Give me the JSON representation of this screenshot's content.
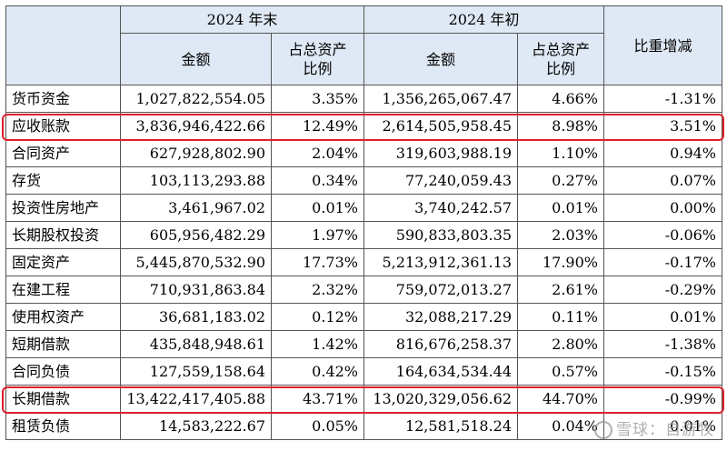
{
  "header": {
    "period_end": "2024 年末",
    "period_start": "2024 年初",
    "amount": "金额",
    "ratio": "占总资产\n比例",
    "change": "比重增减"
  },
  "rows": [
    {
      "item": "货币资金",
      "end_amount": "1,027,822,554.05",
      "end_ratio": "3.35%",
      "start_amount": "1,356,265,067.47",
      "start_ratio": "4.66%",
      "change": "-1.31%"
    },
    {
      "item": "应收账款",
      "end_amount": "3,836,946,422.66",
      "end_ratio": "12.49%",
      "start_amount": "2,614,505,958.45",
      "start_ratio": "8.98%",
      "change": "3.51%"
    },
    {
      "item": "合同资产",
      "end_amount": "627,928,802.90",
      "end_ratio": "2.04%",
      "start_amount": "319,603,988.19",
      "start_ratio": "1.10%",
      "change": "0.94%"
    },
    {
      "item": "存货",
      "end_amount": "103,113,293.88",
      "end_ratio": "0.34%",
      "start_amount": "77,240,059.43",
      "start_ratio": "0.27%",
      "change": "0.07%"
    },
    {
      "item": "投资性房地产",
      "end_amount": "3,461,967.02",
      "end_ratio": "0.01%",
      "start_amount": "3,740,242.57",
      "start_ratio": "0.01%",
      "change": "0.00%"
    },
    {
      "item": "长期股权投资",
      "end_amount": "605,956,482.29",
      "end_ratio": "1.97%",
      "start_amount": "590,833,803.35",
      "start_ratio": "2.03%",
      "change": "-0.06%"
    },
    {
      "item": "固定资产",
      "end_amount": "5,445,870,532.90",
      "end_ratio": "17.73%",
      "start_amount": "5,213,912,361.13",
      "start_ratio": "17.90%",
      "change": "-0.17%"
    },
    {
      "item": "在建工程",
      "end_amount": "710,931,863.84",
      "end_ratio": "2.32%",
      "start_amount": "759,072,013.27",
      "start_ratio": "2.61%",
      "change": "-0.29%"
    },
    {
      "item": "使用权资产",
      "end_amount": "36,681,183.02",
      "end_ratio": "0.12%",
      "start_amount": "32,088,217.29",
      "start_ratio": "0.11%",
      "change": "0.01%"
    },
    {
      "item": "短期借款",
      "end_amount": "435,848,948.61",
      "end_ratio": "1.42%",
      "start_amount": "816,676,258.37",
      "start_ratio": "2.80%",
      "change": "-1.38%"
    },
    {
      "item": "合同负债",
      "end_amount": "127,559,158.64",
      "end_ratio": "0.42%",
      "start_amount": "164,634,534.44",
      "start_ratio": "0.57%",
      "change": "-0.15%"
    },
    {
      "item": "长期借款",
      "end_amount": "13,422,417,405.88",
      "end_ratio": "43.71%",
      "start_amount": "13,020,329,056.62",
      "start_ratio": "44.70%",
      "change": "-0.99%"
    },
    {
      "item": "租赁负债",
      "end_amount": "14,583,222.67",
      "end_ratio": "0.05%",
      "start_amount": "12,581,518.24",
      "start_ratio": "0.04%",
      "change": "0.01%"
    }
  ],
  "highlighted_rows": [
    "应收账款",
    "长期借款"
  ],
  "watermark": "雪球：自游牧",
  "colors": {
    "header_bg": "#dfe9f5",
    "highlight": "#e0202a"
  }
}
